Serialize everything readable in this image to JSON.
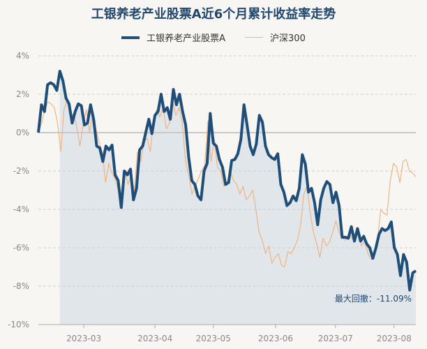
{
  "chart_data": {
    "type": "line",
    "title": "工银养老产业股票A近6个月累计收益率走势",
    "xlabel": "",
    "ylabel": "",
    "ylim": [
      -10,
      4
    ],
    "y_ticks": [
      "4%",
      "2%",
      "0%",
      "-2%",
      "-4%",
      "-6%",
      "-8%",
      "-10%"
    ],
    "y_tick_values": [
      4,
      2,
      0,
      -2,
      -4,
      -6,
      -8,
      -10
    ],
    "x_ticks": [
      {
        "label": "2023-03",
        "index": 14.8
      },
      {
        "label": "2023-04",
        "index": 38
      },
      {
        "label": "2023-05",
        "index": 57
      },
      {
        "label": "2023-06",
        "index": 77.3
      },
      {
        "label": "2023-07",
        "index": 96.8
      },
      {
        "label": "2023-08",
        "index": 115.9
      }
    ],
    "x_index_max": 123,
    "grid": true,
    "legend_placement": "top-center",
    "annotation": "最大回撤：-11.09%",
    "drawdown_start_index": 7,
    "series": [
      {
        "name": "工银养老产业股票A",
        "color": "#1f4e79",
        "width": 4,
        "values": [
          0,
          1.45,
          1.1,
          2.5,
          2.6,
          2.5,
          2.2,
          3.2,
          2.7,
          1.8,
          1.5,
          0.5,
          1.1,
          1.5,
          1.4,
          0.4,
          0.5,
          1.45,
          0.7,
          -0.7,
          -0.8,
          -1.5,
          -0.7,
          -0.9,
          -0.65,
          -2.2,
          -2.5,
          -3.9,
          -2,
          -2.2,
          -1.9,
          -3.5,
          -2.9,
          -0.9,
          -0.7,
          0,
          0.7,
          -0.05,
          0.9,
          1.1,
          2,
          1.1,
          1.3,
          0.7,
          2.25,
          1.45,
          2,
          1.1,
          0.4,
          -1.3,
          -2.5,
          -2.7,
          -3.3,
          -3.5,
          -2,
          -1.6,
          1,
          -0.55,
          -0.7,
          -1.4,
          -1.8,
          -2.7,
          -2.6,
          -1.45,
          -1.4,
          -1.1,
          -0.35,
          1.45,
          0.4,
          -0.7,
          -1.15,
          -0.6,
          0.9,
          0.55,
          -0.7,
          -1.15,
          -1.3,
          -1.4,
          -1.1,
          -2.7,
          -3.1,
          -3.8,
          -3.65,
          -3.3,
          -3.55,
          -2.9,
          -1.15,
          -1.65,
          -3.1,
          -2.9,
          -3.65,
          -4.8,
          -3.5,
          -2.9,
          -2.55,
          -2.7,
          -3.65,
          -3.1,
          -3.8,
          -5.45,
          -5.45,
          -5.5,
          -4.9,
          -5.65,
          -5,
          -5.65,
          -5.4,
          -5.8,
          -6,
          -6.55,
          -6,
          -5.3,
          -5,
          -5.1,
          -5,
          -4.65,
          -6,
          -6.35,
          -7.45,
          -6.35,
          -6.75,
          -8.2,
          -7.3,
          -7.2
        ]
      },
      {
        "name": "沪深300",
        "color": "#f0b482",
        "width": 1.2,
        "values": [
          0,
          0.5,
          1.2,
          1.6,
          1.5,
          1.3,
          0.5,
          -1,
          1.2,
          1.7,
          0.8,
          1,
          0.3,
          -0.7,
          0.4,
          1.2,
          0,
          1,
          0.2,
          -0.5,
          -1,
          -2.6,
          -1.6,
          -2.1,
          -2.4,
          -3,
          -3.5,
          -2,
          -2.7,
          -2.2,
          -3,
          -1,
          -1.5,
          -0.5,
          -0.3,
          -1,
          0.7,
          1.2,
          0.8,
          1.3,
          0.2,
          0.5,
          1.6,
          0.9,
          1.3,
          0.5,
          -1.5,
          -2.2,
          -3.2,
          -2.8,
          -2.4,
          -2,
          -1.7,
          0.6,
          -1.5,
          -0.3,
          -1.8,
          -2,
          -2.8,
          -2.6,
          -2,
          -2.5,
          -2.7,
          -3.2,
          -2.8,
          -3.5,
          -3.3,
          -3,
          -4,
          -5.2,
          -5.6,
          -6.3,
          -5.9,
          -6.8,
          -6.5,
          -6.3,
          -6.9,
          -7,
          -6.2,
          -6.3,
          -6,
          -5.6,
          -4.8,
          -3.2,
          -2.8,
          -4.2,
          -5.2,
          -5.8,
          -6.5,
          -5.5,
          -5.9,
          -5.7,
          -5.2,
          -4.6,
          -5.2,
          -5.5,
          -5.6,
          -5.3,
          -5.5,
          -5.6,
          -5.2,
          -5.9,
          -5.6,
          -6.3,
          -6.6,
          -6.2,
          -5.6,
          -4,
          -4.2,
          -4.3,
          -2.5,
          -1.6,
          -1.8,
          -2.6,
          -1.5,
          -1.4,
          -2,
          -2.1,
          -2.3
        ]
      }
    ]
  }
}
